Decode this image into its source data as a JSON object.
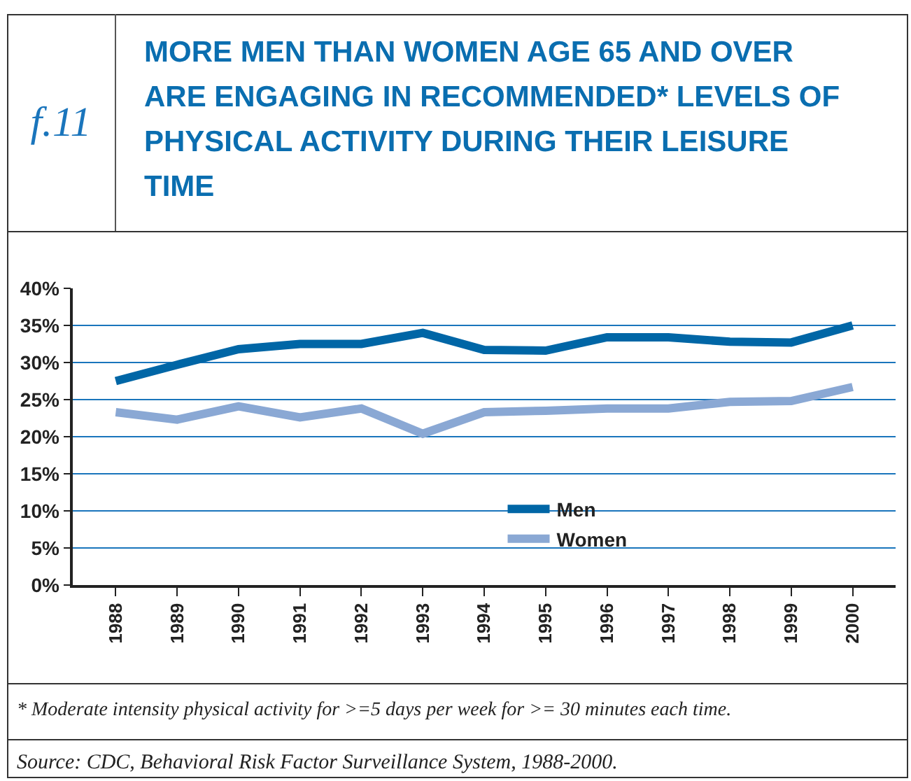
{
  "chart_data": {
    "type": "line",
    "title": "MORE MEN THAN WOMEN AGE 65 AND OVER ARE ENGAGING IN RECOMMENDED* LEVELS OF PHYSICAL ACTIVITY DURING THEIR LEISURE TIME",
    "categories": [
      "1988",
      "1989",
      "1990",
      "1991",
      "1992",
      "1993",
      "1994",
      "1995",
      "1996",
      "1997",
      "1998",
      "1999",
      "2000"
    ],
    "series": [
      {
        "name": "Men",
        "color": "#0066a6",
        "values": [
          27.5,
          29.7,
          31.8,
          32.5,
          32.5,
          34,
          31.7,
          31.6,
          33.4,
          33.4,
          32.8,
          32.7,
          35
        ]
      },
      {
        "name": "Women",
        "color": "#8aa8d4",
        "values": [
          23.3,
          22.3,
          24.1,
          22.6,
          23.8,
          20.4,
          23.3,
          23.5,
          23.8,
          23.8,
          24.7,
          24.8,
          26.7
        ]
      }
    ],
    "ylim": [
      0,
      40
    ],
    "yticks": [
      {
        "value": 0,
        "label": "0%"
      },
      {
        "value": 5,
        "label": "5%"
      },
      {
        "value": 10,
        "label": "10%"
      },
      {
        "value": 15,
        "label": "15%"
      },
      {
        "value": 20,
        "label": "20%"
      },
      {
        "value": 25,
        "label": "25%"
      },
      {
        "value": 30,
        "label": "30%"
      },
      {
        "value": 35,
        "label": "35%"
      },
      {
        "value": 40,
        "label": "40%"
      }
    ],
    "grid": "y",
    "legend": "bottom",
    "marker": "none",
    "line_style": "solid",
    "annotations": [
      "f.11",
      "* Moderate intensity physical activity for >=5 days  per week for >= 30 minutes each time.",
      "Source:  CDC, Behavioral Risk Factor Surveillance System, 1988-2000."
    ]
  }
}
